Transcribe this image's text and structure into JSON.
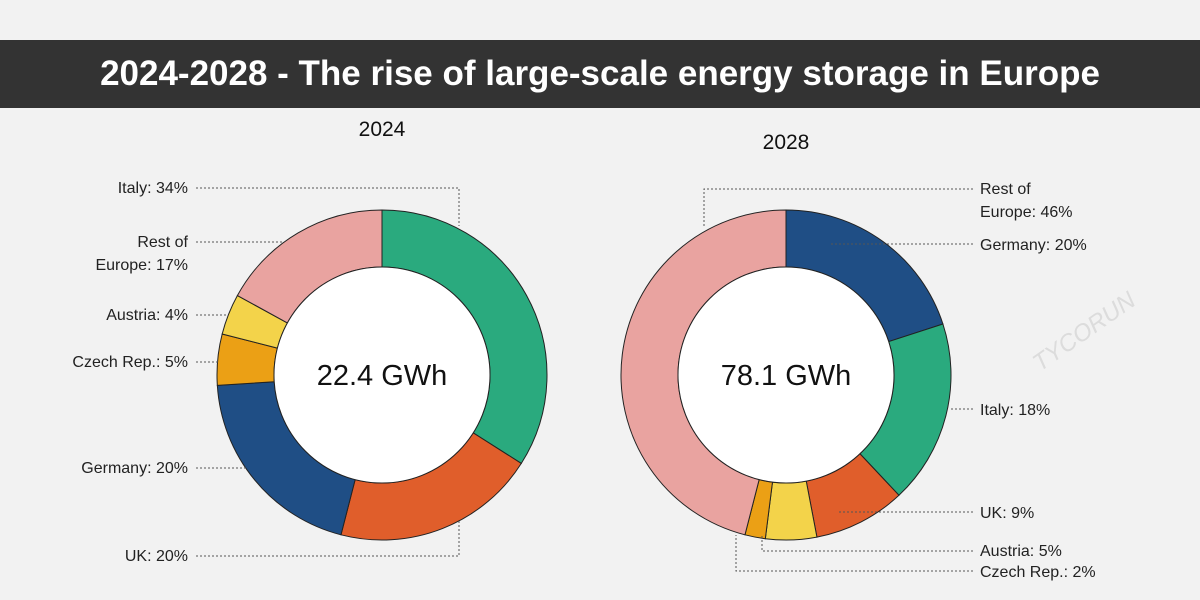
{
  "title": "2024-2028 - The rise of large-scale energy storage in Europe",
  "watermark": "TYCORUN",
  "colors": {
    "Italy": "#2aaa7e",
    "UK": "#e05e2b",
    "Germany": "#1f4e85",
    "Czech Rep.": "#eba015",
    "Austria": "#f3d34a",
    "Rest of Europe": "#e9a3a0"
  },
  "chart_data": [
    {
      "type": "pie",
      "donut": true,
      "title": "2024",
      "center_label": "22.4 GWh",
      "slices": [
        {
          "name": "Italy",
          "value": 34,
          "label": "Italy: 34%"
        },
        {
          "name": "UK",
          "value": 20,
          "label": "UK: 20%"
        },
        {
          "name": "Germany",
          "value": 20,
          "label": "Germany: 20%"
        },
        {
          "name": "Czech Rep.",
          "value": 5,
          "label": "Czech Rep.: 5%"
        },
        {
          "name": "Austria",
          "value": 4,
          "label": "Austria: 4%"
        },
        {
          "name": "Rest of Europe",
          "value": 17,
          "label_lines": [
            "Rest of",
            "Europe: 17%"
          ]
        }
      ]
    },
    {
      "type": "pie",
      "donut": true,
      "title": "2028",
      "center_label": "78.1 GWh",
      "slices": [
        {
          "name": "Germany",
          "value": 20,
          "label": "Germany: 20%"
        },
        {
          "name": "Italy",
          "value": 18,
          "label": "Italy: 18%"
        },
        {
          "name": "UK",
          "value": 9,
          "label": "UK: 9%"
        },
        {
          "name": "Austria",
          "value": 5,
          "label": "Austria: 5%"
        },
        {
          "name": "Czech Rep.",
          "value": 2,
          "label": "Czech Rep.: 2%"
        },
        {
          "name": "Rest of Europe",
          "value": 46,
          "label_lines": [
            "Rest of",
            "Europe: 46%"
          ]
        }
      ]
    }
  ]
}
